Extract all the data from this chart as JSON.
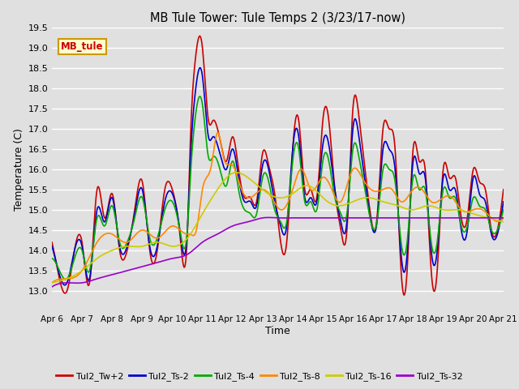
{
  "title": "MB Tule Tower: Tule Temps 2 (3/23/17-now)",
  "xlabel": "Time",
  "ylabel": "Temperature (C)",
  "ylim": [
    12.5,
    19.5
  ],
  "yticks": [
    13.0,
    13.5,
    14.0,
    14.5,
    15.0,
    15.5,
    16.0,
    16.5,
    17.0,
    17.5,
    18.0,
    18.5,
    19.0,
    19.5
  ],
  "bg_color": "#e0e0e0",
  "grid_color": "#ffffff",
  "series": {
    "Tul2_Tw+2": {
      "color": "#cc0000",
      "lw": 1.2
    },
    "Tul2_Ts-2": {
      "color": "#0000cc",
      "lw": 1.2
    },
    "Tul2_Ts-4": {
      "color": "#00aa00",
      "lw": 1.2
    },
    "Tul2_Ts-8": {
      "color": "#ff8800",
      "lw": 1.2
    },
    "Tul2_Ts-16": {
      "color": "#cccc00",
      "lw": 1.2
    },
    "Tul2_Ts-32": {
      "color": "#9900cc",
      "lw": 1.2
    }
  },
  "legend_box_color": "#ffffcc",
  "legend_box_border": "#cc9900",
  "legend_box_text": "#cc0000",
  "legend_box_label": "MB_tule",
  "xtick_labels": [
    "Apr 6",
    "Apr 7",
    "Apr 8",
    "Apr 9",
    "Apr 10",
    "Apr 11",
    "Apr 12",
    "Apr 13",
    "Apr 14",
    "Apr 15",
    "Apr 16",
    "Apr 17",
    "Apr 18",
    "Apr 19",
    "Apr 20",
    "Apr 21"
  ]
}
